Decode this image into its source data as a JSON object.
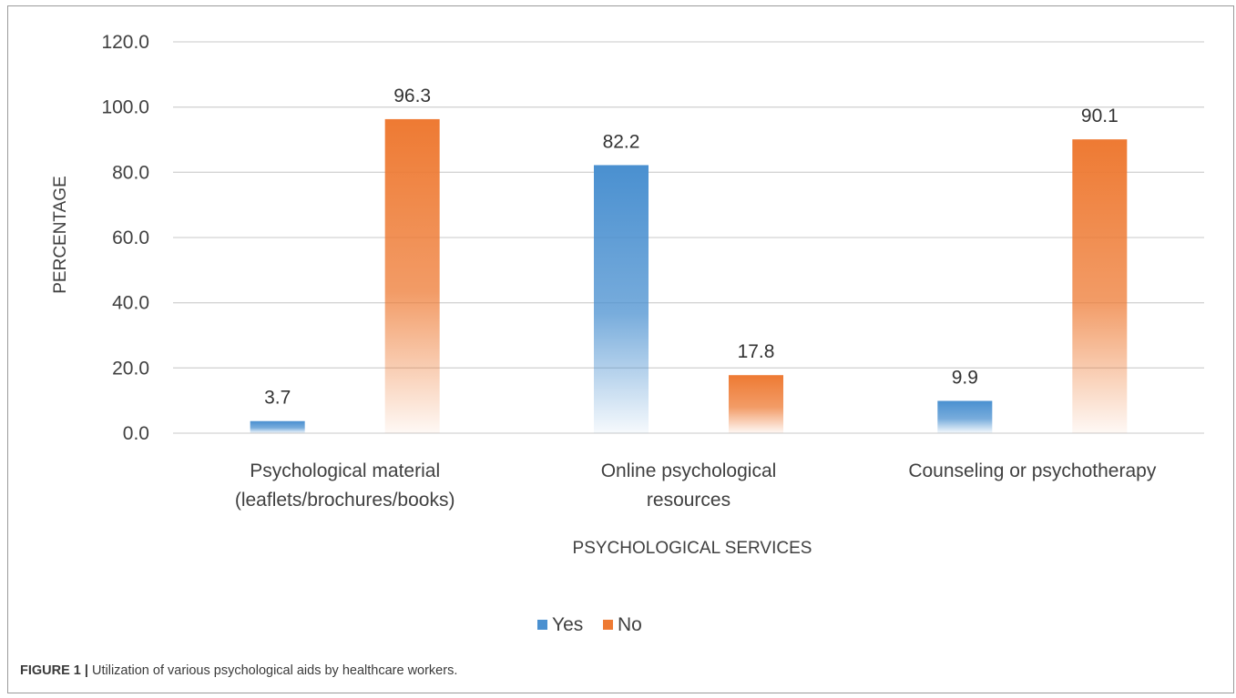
{
  "chart_data": {
    "type": "bar",
    "categories": [
      [
        "Psychological material",
        "(leaflets/brochures/books)"
      ],
      [
        "Online psychological",
        "resources"
      ],
      [
        "Counseling or psychotherapy"
      ]
    ],
    "series": [
      {
        "name": "Yes",
        "values": [
          3.7,
          82.2,
          9.9
        ],
        "color": "#4a90d0"
      },
      {
        "name": "No",
        "values": [
          96.3,
          17.8,
          90.1
        ],
        "color": "#ee7a33"
      }
    ],
    "value_labels": [
      [
        "3.7",
        "82.2",
        "9.9"
      ],
      [
        "96.3",
        "17.8",
        "90.1"
      ]
    ],
    "yticks": [
      "0.0",
      "20.0",
      "40.0",
      "60.0",
      "80.0",
      "100.0",
      "120.0"
    ],
    "ylim": [
      0,
      120
    ],
    "xlabel": "PSYCHOLOGICAL SERVICES",
    "ylabel": "PERCENTAGE",
    "grid": true,
    "legend_position": "bottom"
  },
  "caption": {
    "label": "FIGURE 1 |",
    "text": "Utilization of various psychological aids by healthcare workers."
  }
}
